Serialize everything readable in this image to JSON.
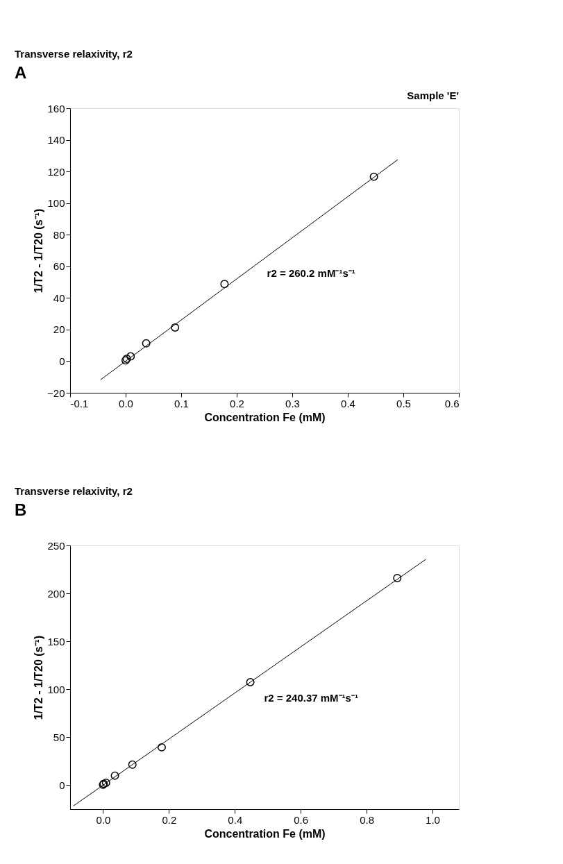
{
  "chart_data": [
    {
      "type": "scatter",
      "title": "Transverse relaxivity, r2",
      "xlabel": "Concentration Fe (mM)",
      "ylabel": "1/T2 - 1/T20 (s⁻¹)",
      "annotations": [
        "A",
        "Sample 'E'",
        "r2 = 260.2 mM⁻¹s⁻¹"
      ],
      "xlim": [
        -0.1,
        0.6
      ],
      "ylim": [
        -20,
        160
      ],
      "xticks": [
        {
          "value": -0.1,
          "label": "-0.1"
        },
        {
          "value": 0,
          "label": "0.0"
        },
        {
          "value": 0.1,
          "label": "0.1"
        },
        {
          "value": 0.2,
          "label": "0.2"
        },
        {
          "value": 0.3,
          "label": "0.3"
        },
        {
          "value": 0.4,
          "label": "0.4"
        },
        {
          "value": 0.5,
          "label": "0.5"
        },
        {
          "value": 0.6,
          "label": "0.6"
        }
      ],
      "yticks": [
        -20,
        0,
        20,
        40,
        60,
        80,
        100,
        120,
        140,
        160
      ],
      "grid": false,
      "series": [
        {
          "marker": "circle",
          "color": "#000000",
          "x": [
            0.0,
            0.002,
            0.009,
            0.037,
            0.089,
            0.178,
            0.447
          ],
          "values": [
            0.5,
            1.5,
            3,
            11.3,
            21.3,
            48.8,
            116.7
          ]
        },
        {
          "type": "line",
          "line_style": "solid",
          "color": "#000000",
          "x": [
            -0.045,
            0.49
          ],
          "values": [
            -11.7,
            127.5
          ]
        }
      ]
    },
    {
      "type": "scatter",
      "title": "Transverse relaxivity, r2",
      "xlabel": "Concentration Fe (mM)",
      "ylabel": "1/T2 - 1/T20 (s⁻¹)",
      "annotations": [
        "B",
        "r2 = 240.37 mM⁻¹s⁻¹"
      ],
      "xlim": [
        -0.1,
        1.08
      ],
      "ylim": [
        -25,
        250
      ],
      "xticks": [
        {
          "value": 0,
          "label": "0.0"
        },
        {
          "value": 0.2,
          "label": "0.2"
        },
        {
          "value": 0.4,
          "label": "0.4"
        },
        {
          "value": 0.6,
          "label": "0.6"
        },
        {
          "value": 0.8,
          "label": "0.8"
        },
        {
          "value": 1.0,
          "label": "1.0"
        }
      ],
      "yticks": [
        0,
        50,
        100,
        150,
        200,
        250
      ],
      "grid": false,
      "series": [
        {
          "marker": "circle",
          "color": "#000000",
          "x": [
            0.0,
            0.002,
            0.009,
            0.036,
            0.089,
            0.178,
            0.447,
            0.893
          ],
          "values": [
            0.5,
            1.5,
            2.5,
            10,
            21.5,
            39.5,
            107.5,
            216
          ]
        },
        {
          "type": "line",
          "line_style": "solid",
          "color": "#000000",
          "x": [
            -0.09,
            0.98
          ],
          "values": [
            -21.6,
            235.6
          ]
        }
      ]
    }
  ]
}
